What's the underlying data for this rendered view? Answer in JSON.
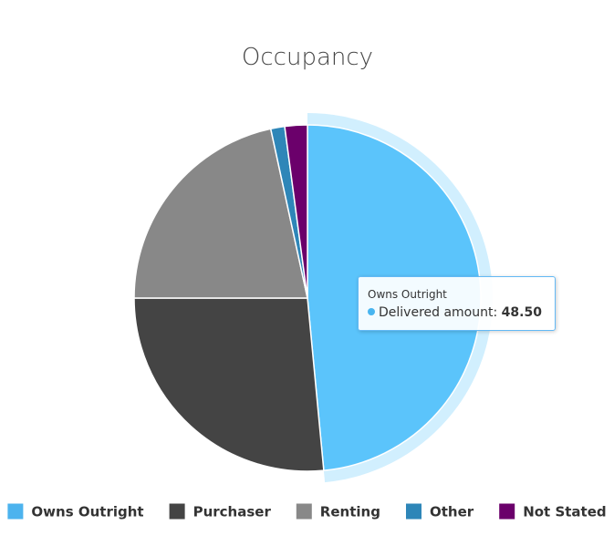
{
  "chart_data": {
    "type": "pie",
    "title": "Occupancy",
    "series_name": "Delivered amount",
    "slices": [
      {
        "name": "Owns Outright",
        "value": 48.5,
        "color": "#5bc4fb"
      },
      {
        "name": "Purchaser",
        "value": 26.5,
        "color": "#444444"
      },
      {
        "name": "Renting",
        "value": 21.6,
        "color": "#888888"
      },
      {
        "name": "Other",
        "value": 1.3,
        "color": "#2e86b8"
      },
      {
        "name": "Not Stated",
        "value": 2.1,
        "color": "#6b006b"
      }
    ],
    "legend_position": "bottom",
    "hovered": "Owns Outright",
    "tooltip": {
      "title": "Owns Outright",
      "label": "Delivered amount:",
      "value": "48.50",
      "dot_color": "#48b5f0"
    },
    "legend_colors": [
      "#4cb3ee",
      "#444444",
      "#888888",
      "#2e86b8",
      "#6b006b"
    ]
  }
}
